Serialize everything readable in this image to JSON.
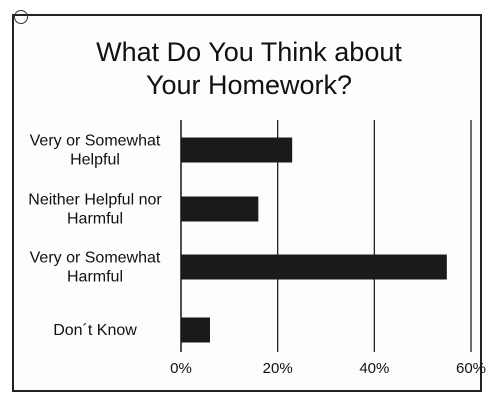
{
  "chart_data": {
    "type": "bar",
    "orientation": "horizontal",
    "title": [
      "What Do You Think about",
      "Your Homework?"
    ],
    "categories": [
      [
        "Very or Somewhat",
        "Helpful"
      ],
      [
        "Neither Helpful nor",
        "Harmful"
      ],
      [
        "Very or Somewhat",
        "Harmful"
      ],
      [
        "Don´t Know"
      ]
    ],
    "values": [
      23,
      16,
      55,
      6
    ],
    "xlim": [
      0,
      60
    ],
    "ticks": [
      0,
      20,
      40,
      60
    ],
    "tick_labels": [
      "0%",
      "20%",
      "40%",
      "60%"
    ],
    "grid": true,
    "bar_color": "#1a1a1a"
  }
}
